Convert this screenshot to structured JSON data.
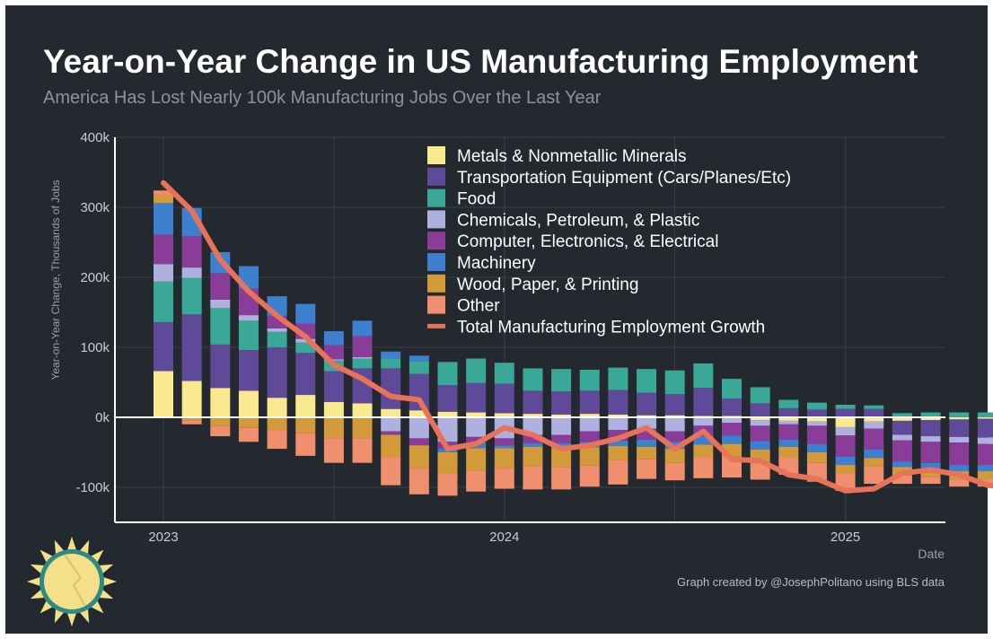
{
  "header": {
    "title": "Year-on-Year Change in US Manufacturing Employment",
    "subtitle": "America Has Lost Nearly 100k Manufacturing Jobs Over the Last Year"
  },
  "footer": {
    "credit": "Graph created by @JosephPolitano using BLS data"
  },
  "colors": {
    "background": "#24282f",
    "grid": "#3a3f47",
    "axis": "#ffffff",
    "sun": "#f5e08a",
    "sun_ring": "#2e8b85"
  },
  "chart_data": {
    "type": "bar",
    "stacked": true,
    "title": "Year-on-Year Change in US Manufacturing Employment",
    "subtitle": "America Has Lost Nearly 100k Manufacturing Jobs Over the Last Year",
    "xlabel": "Date",
    "ylabel": "Year-on-Year Change, Thousands of Jobs",
    "ylim": [
      -150,
      400
    ],
    "yticks": [
      -100,
      0,
      100,
      200,
      300,
      400
    ],
    "ytick_labels": [
      "-100k",
      "0k",
      "100k",
      "200k",
      "300k",
      "400k"
    ],
    "xticks": [
      "2023",
      "2024",
      "2025"
    ],
    "x": [
      "2023-01",
      "2023-02",
      "2023-03",
      "2023-04",
      "2023-05",
      "2023-06",
      "2023-07",
      "2023-08",
      "2023-09",
      "2023-10",
      "2023-11",
      "2023-12",
      "2024-01",
      "2024-02",
      "2024-03",
      "2024-04",
      "2024-05",
      "2024-06",
      "2024-07",
      "2024-08",
      "2024-09",
      "2024-10",
      "2024-11",
      "2024-12",
      "2025-01",
      "2025-02",
      "2025-03",
      "2025-04",
      "2025-05",
      "2025-06",
      "2025-07",
      "2025-08"
    ],
    "grid": true,
    "legend_position": "top-right",
    "series": [
      {
        "name": "Metals & Nonmetallic Minerals",
        "color": "#f9e98f",
        "values": [
          66,
          52,
          42,
          38,
          28,
          32,
          22,
          20,
          12,
          10,
          8,
          7,
          6,
          5,
          4,
          5,
          4,
          3,
          3,
          2,
          2,
          -4,
          -5,
          -6,
          -14,
          -6,
          -5,
          -4,
          -3,
          -2,
          -1,
          3
        ]
      },
      {
        "name": "Transportation Equipment (Cars/Planes/Etc)",
        "color": "#5e4a98",
        "values": [
          70,
          95,
          62,
          58,
          72,
          60,
          44,
          50,
          58,
          52,
          38,
          42,
          42,
          33,
          33,
          33,
          35,
          32,
          30,
          40,
          25,
          20,
          13,
          11,
          12,
          12,
          -20,
          -23,
          -25,
          -27,
          -30,
          -35
        ]
      },
      {
        "name": "Food",
        "color": "#3aa897",
        "values": [
          58,
          52,
          52,
          42,
          22,
          15,
          15,
          14,
          14,
          18,
          33,
          35,
          30,
          32,
          32,
          30,
          32,
          34,
          34,
          35,
          28,
          23,
          12,
          10,
          6,
          5,
          6,
          7,
          7,
          7,
          7,
          7
        ]
      },
      {
        "name": "Chemicals, Petroleum, & Plastic",
        "color": "#aeb1dd",
        "values": [
          25,
          15,
          12,
          8,
          5,
          5,
          2,
          2,
          -20,
          -30,
          -35,
          -28,
          -30,
          -25,
          -25,
          -20,
          -18,
          -16,
          -20,
          -12,
          -8,
          -8,
          -5,
          -6,
          -12,
          -10,
          -8,
          -8,
          -8,
          -9,
          -8,
          -6
        ]
      },
      {
        "name": "Computer, Electronics, & Electrical",
        "color": "#8a3d98",
        "values": [
          42,
          45,
          38,
          38,
          18,
          22,
          20,
          30,
          -5,
          -10,
          -10,
          -8,
          -10,
          -12,
          -12,
          -15,
          -15,
          -16,
          -15,
          -15,
          -18,
          -22,
          -22,
          -26,
          -30,
          -30,
          -30,
          -30,
          -32,
          -30,
          -30,
          -25
        ]
      },
      {
        "name": "Machinery",
        "color": "#3e80d0",
        "values": [
          45,
          40,
          30,
          32,
          28,
          28,
          20,
          22,
          10,
          8,
          -5,
          -8,
          -4,
          -5,
          -6,
          -8,
          -8,
          -10,
          -10,
          -12,
          -12,
          -12,
          -10,
          -12,
          -12,
          -12,
          -8,
          -8,
          -9,
          -9,
          -8,
          -6
        ]
      },
      {
        "name": "Wood, Paper, & Printing",
        "color": "#d39a3a",
        "values": [
          12,
          -4,
          -12,
          -15,
          -18,
          -22,
          -30,
          -30,
          -32,
          -32,
          -30,
          -32,
          -28,
          -28,
          -28,
          -26,
          -20,
          -18,
          -20,
          -18,
          -18,
          -18,
          -15,
          -15,
          -12,
          -12,
          -12,
          -12,
          -12,
          -12,
          -12,
          -15
        ]
      },
      {
        "name": "Other",
        "color": "#ef8f6e",
        "values": [
          6,
          -6,
          -15,
          -20,
          -27,
          -33,
          -35,
          -35,
          -40,
          -38,
          -32,
          -30,
          -30,
          -33,
          -32,
          -30,
          -35,
          -28,
          -25,
          -30,
          -30,
          -25,
          -25,
          -27,
          -25,
          -25,
          -12,
          -10,
          -10,
          -10,
          -10,
          -10
        ]
      }
    ],
    "line": {
      "name": "Total Manufacturing Employment Growth",
      "color": "#e8735a",
      "values": [
        335,
        295,
        225,
        180,
        145,
        115,
        75,
        55,
        30,
        25,
        -45,
        -38,
        -15,
        -25,
        -45,
        -40,
        -30,
        -15,
        -45,
        -20,
        -60,
        -62,
        -82,
        -88,
        -105,
        -102,
        -80,
        -75,
        -82,
        -97,
        -100,
        -80
      ]
    }
  }
}
